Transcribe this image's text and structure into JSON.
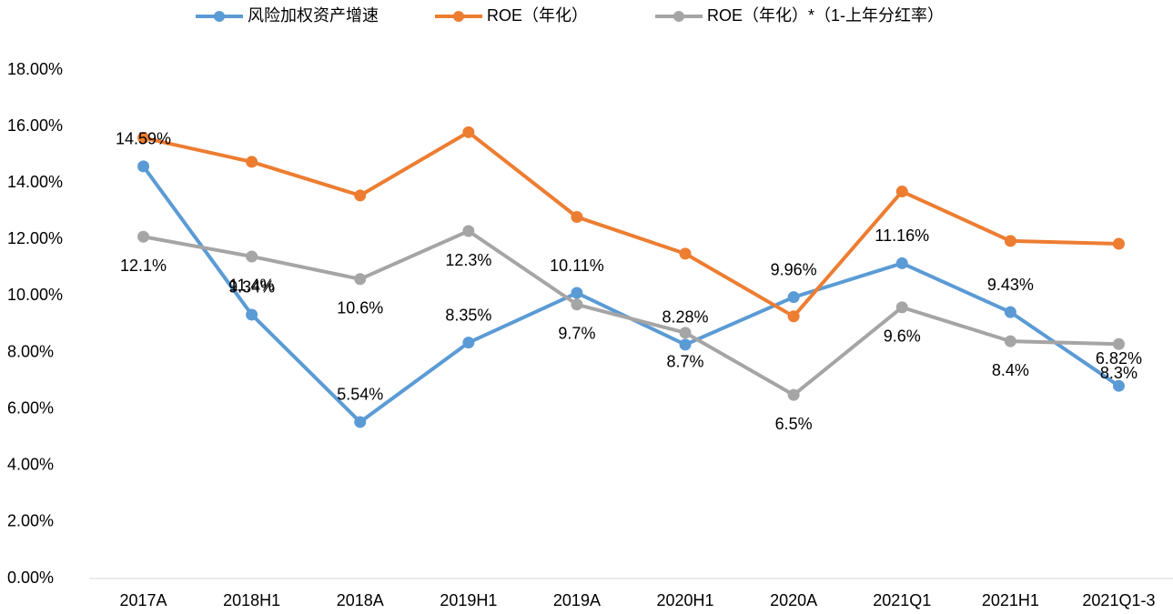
{
  "chart_data": {
    "type": "line",
    "categories": [
      "2017A",
      "2018H1",
      "2018A",
      "2019H1",
      "2019A",
      "2020H1",
      "2020A",
      "2021Q1",
      "2021H1",
      "2021Q1-3"
    ],
    "series": [
      {
        "name": "风险加权资产增速",
        "color": "#5b9bd5",
        "values": [
          14.59,
          9.34,
          5.54,
          8.35,
          10.11,
          8.28,
          9.96,
          11.16,
          9.43,
          6.82
        ],
        "value_labels": [
          "14.59%",
          "9.34%",
          "5.54%",
          "8.35%",
          "10.11%",
          "8.28%",
          "9.96%",
          "11.16%",
          "9.43%",
          "6.82%"
        ]
      },
      {
        "name": "ROE（年化）",
        "color": "#ed7d31",
        "values": [
          15.6,
          14.75,
          13.56,
          15.8,
          12.8,
          11.5,
          9.28,
          13.7,
          11.95,
          11.85
        ]
      },
      {
        "name": "ROE（年化）*（1-上年分红率）",
        "color": "#a5a5a5",
        "values": [
          12.1,
          11.4,
          10.6,
          12.3,
          9.7,
          8.7,
          6.5,
          9.6,
          8.4,
          8.3
        ],
        "value_labels": [
          "12.1%",
          "11.4%",
          "10.6%",
          "12.3%",
          "9.7%",
          "8.7%",
          "6.5%",
          "9.6%",
          "8.4%",
          "8.3%"
        ]
      }
    ],
    "ylim": [
      0,
      18
    ],
    "yticks": [
      {
        "value": 0,
        "label": "0.00%"
      },
      {
        "value": 2,
        "label": "2.00%"
      },
      {
        "value": 4,
        "label": "4.00%"
      },
      {
        "value": 6,
        "label": "6.00%"
      },
      {
        "value": 8,
        "label": "8.00%"
      },
      {
        "value": 10,
        "label": "10.00%"
      },
      {
        "value": 12,
        "label": "12.00%"
      },
      {
        "value": 14,
        "label": "14.00%"
      },
      {
        "value": 16,
        "label": "16.00%"
      },
      {
        "value": 18,
        "label": "18.00%"
      }
    ],
    "grid": false,
    "legend": "top"
  }
}
